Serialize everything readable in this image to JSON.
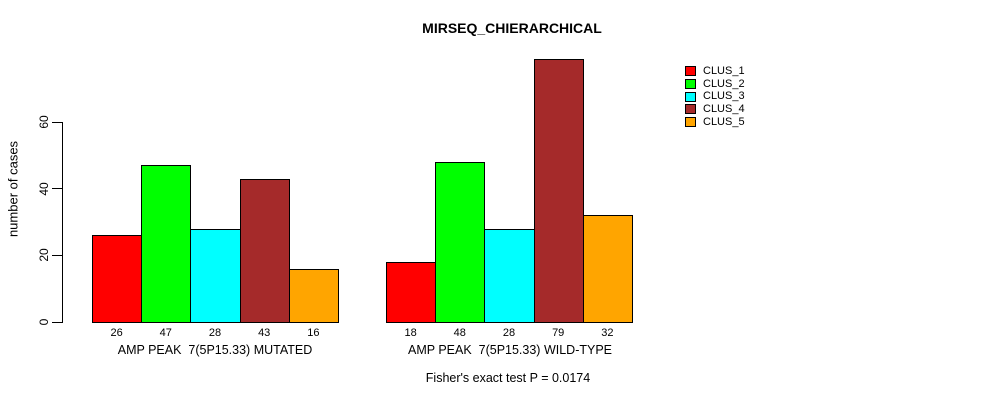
{
  "chart_data": {
    "type": "bar",
    "title": "MIRSEQ_CHIERARCHICAL",
    "ylabel": "number of cases",
    "xlabel": "",
    "yticks": [
      0,
      20,
      40,
      60
    ],
    "ylim": [
      0,
      80
    ],
    "grid": false,
    "background": "#ffffff",
    "axis_color": "#000000",
    "categories": [
      "CLUS_1",
      "CLUS_2",
      "CLUS_3",
      "CLUS_4",
      "CLUS_5"
    ],
    "bar_colors": [
      "#FF0000",
      "#00FF00",
      "#00FFFF",
      "#A52A2A",
      "#FFA500"
    ],
    "groups": [
      {
        "label": "AMP PEAK  7(5P15.33) MUTATED",
        "values": [
          26,
          47,
          28,
          43,
          16
        ]
      },
      {
        "label": "AMP PEAK  7(5P15.33) WILD-TYPE",
        "values": [
          18,
          48,
          28,
          79,
          32
        ]
      }
    ],
    "legend": {
      "position": "right",
      "entries": [
        {
          "label": "CLUS_1",
          "color": "#FF0000"
        },
        {
          "label": "CLUS_2",
          "color": "#00FF00"
        },
        {
          "label": "CLUS_3",
          "color": "#00FFFF"
        },
        {
          "label": "CLUS_4",
          "color": "#A52A2A"
        },
        {
          "label": "CLUS_5",
          "color": "#FFA500"
        }
      ]
    },
    "caption": "Fisher's exact test P = 0.0174"
  }
}
